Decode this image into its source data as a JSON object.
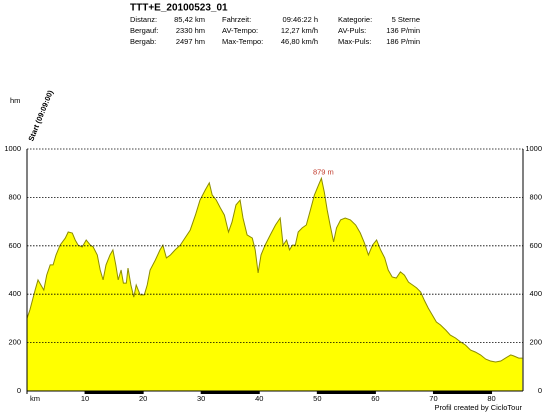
{
  "title": "TTT+E_20100523_01",
  "stats": [
    [
      [
        "Distanz:",
        "85,42 km"
      ],
      [
        "Bergauf:",
        "2330 hm"
      ],
      [
        "Bergab:",
        "2497 hm"
      ]
    ],
    [
      [
        "Fahrzeit:",
        "09:46:22 h"
      ],
      [
        "AV-Tempo:",
        "12,27 km/h"
      ],
      [
        "Max-Tempo:",
        "46,80 km/h"
      ]
    ],
    [
      [
        "Kategorie:",
        "5 Sterne"
      ],
      [
        "AV-Puls:",
        "136 P/min"
      ],
      [
        "Max-Puls:",
        "186 P/min"
      ]
    ]
  ],
  "chart_data": {
    "type": "area",
    "y_label": "hm",
    "start_label": "Start (09:09:00)",
    "footer": "Profil created by CicloTour",
    "color": "#ffff00",
    "line_color": "#8c8c00",
    "annotation": {
      "text": "879 m",
      "x": 50.7,
      "y": 879,
      "color": "#c0392b"
    },
    "grid": true,
    "xlim": [
      0,
      85.42
    ],
    "ylim": [
      0,
      1000
    ],
    "yticks": [
      0,
      200,
      400,
      600,
      800,
      1000
    ],
    "xticks": [
      {
        "value": 0,
        "label": "km"
      },
      10,
      20,
      30,
      40,
      50,
      60,
      70,
      80
    ],
    "x": [
      0,
      0.5,
      1.4,
      1.9,
      2.4,
      2.9,
      3.4,
      4.0,
      4.5,
      5.0,
      5.7,
      6.6,
      7.1,
      7.8,
      8.3,
      8.8,
      9.5,
      10.2,
      10.9,
      11.4,
      12.1,
      12.6,
      13.1,
      13.6,
      14.3,
      14.8,
      15.3,
      15.7,
      16.2,
      16.6,
      17.1,
      17.4,
      17.9,
      18.4,
      18.8,
      19.5,
      20.2,
      20.7,
      21.2,
      22.1,
      22.9,
      23.4,
      24.0,
      24.7,
      25.5,
      26.4,
      27.2,
      28.1,
      29.0,
      29.8,
      30.7,
      31.4,
      31.9,
      32.6,
      33.3,
      34.0,
      34.7,
      35.3,
      36.0,
      36.7,
      37.2,
      37.9,
      38.8,
      39.3,
      39.8,
      40.3,
      41.0,
      41.9,
      42.8,
      43.6,
      44.1,
      44.7,
      45.2,
      45.7,
      46.2,
      46.7,
      47.4,
      48.1,
      48.8,
      49.5,
      50.2,
      50.7,
      51.2,
      51.7,
      52.2,
      52.8,
      53.3,
      54.0,
      54.8,
      55.7,
      56.6,
      57.4,
      58.1,
      58.8,
      59.5,
      60.2,
      60.9,
      61.6,
      62.2,
      62.9,
      63.6,
      64.3,
      65.0,
      65.7,
      66.4,
      67.1,
      67.8,
      68.4,
      69.1,
      69.8,
      70.5,
      71.2,
      72.1,
      72.9,
      73.8,
      74.7,
      75.5,
      76.4,
      77.2,
      78.1,
      79.0,
      79.8,
      80.7,
      81.6,
      82.4,
      83.3,
      83.8,
      84.7,
      85.3
    ],
    "values": [
      300,
      335,
      417,
      459,
      438,
      417,
      479,
      521,
      521,
      562,
      603,
      632,
      657,
      653,
      624,
      603,
      595,
      624,
      603,
      595,
      562,
      500,
      459,
      521,
      562,
      583,
      521,
      459,
      500,
      446,
      446,
      508,
      438,
      388,
      438,
      397,
      397,
      438,
      500,
      541,
      583,
      603,
      550,
      562,
      583,
      603,
      632,
      665,
      727,
      789,
      831,
      860,
      810,
      789,
      756,
      727,
      657,
      698,
      769,
      789,
      715,
      645,
      632,
      583,
      488,
      562,
      603,
      645,
      686,
      715,
      603,
      624,
      583,
      603,
      603,
      657,
      674,
      686,
      748,
      810,
      851,
      879,
      822,
      748,
      686,
      616,
      674,
      707,
      715,
      707,
      686,
      653,
      612,
      562,
      603,
      624,
      583,
      550,
      500,
      471,
      467,
      492,
      479,
      450,
      438,
      426,
      409,
      376,
      343,
      314,
      285,
      273,
      252,
      231,
      219,
      202,
      190,
      169,
      161,
      149,
      132,
      124,
      120,
      124,
      136,
      149,
      145,
      136,
      136
    ]
  }
}
